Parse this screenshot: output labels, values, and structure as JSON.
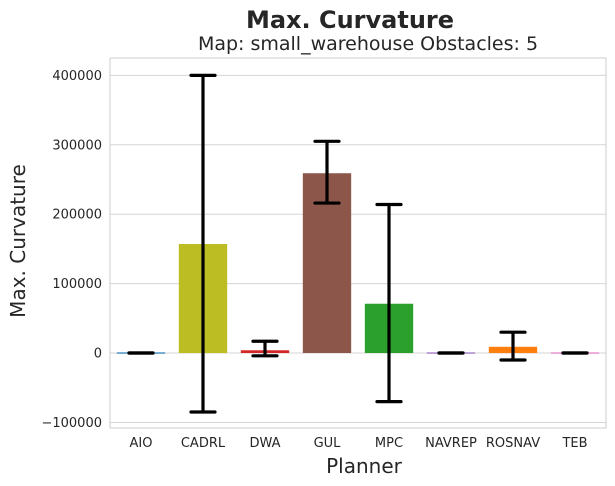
{
  "chart_data": {
    "type": "bar",
    "title": "Max. Curvature",
    "subtitle": "Map: small_warehouse Obstacles: 5",
    "xlabel": "Planner",
    "ylabel": "Max. Curvature",
    "categories": [
      "AIO",
      "CADRL",
      "DWA",
      "GUL",
      "MPC",
      "NAVREP",
      "ROSNAV",
      "TEB"
    ],
    "values": [
      0,
      157000,
      4000,
      259000,
      71000,
      0,
      9000,
      0
    ],
    "error_low": [
      0,
      -85000,
      -4000,
      216000,
      -70000,
      0,
      -10000,
      0
    ],
    "error_high": [
      0,
      400000,
      17000,
      305000,
      214000,
      0,
      30000,
      0
    ],
    "colors": [
      "#1f77b4",
      "#bcbd22",
      "#d62728",
      "#8c564b",
      "#2ca02c",
      "#9467bd",
      "#ff7f0e",
      "#e377c2"
    ],
    "yticks": [
      -100000,
      0,
      100000,
      200000,
      300000,
      400000
    ],
    "ytick_labels": [
      "−100000",
      "0",
      "100000",
      "200000",
      "300000",
      "400000"
    ],
    "ylim": [
      -108000,
      425000
    ],
    "grid": "horizontal"
  }
}
